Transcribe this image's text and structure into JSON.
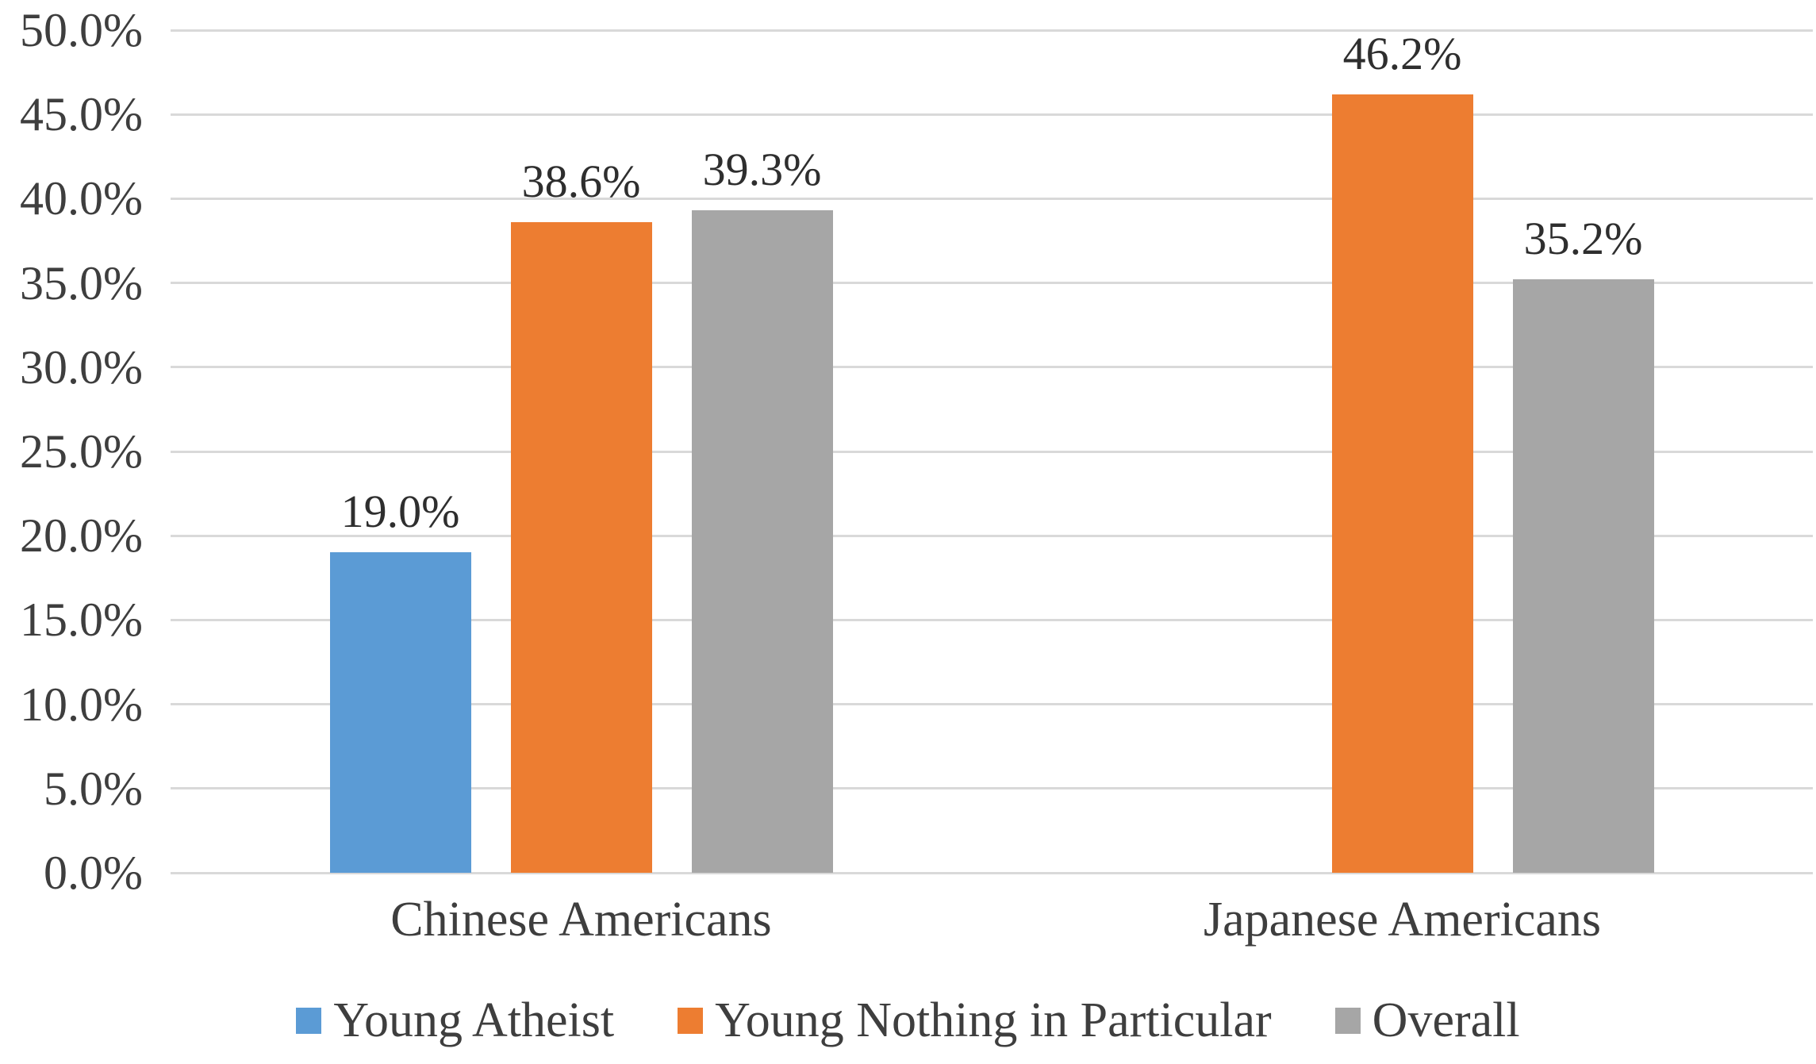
{
  "chart_data": {
    "type": "bar",
    "title": "",
    "categories": [
      "Chinese Americans",
      "Japanese Americans"
    ],
    "series": [
      {
        "name": "Young Atheist",
        "color": "#5B9BD5",
        "values": [
          19.0,
          null
        ],
        "labels": [
          "19.0%",
          null
        ]
      },
      {
        "name": "Young Nothing in Particular",
        "color": "#ED7D31",
        "values": [
          38.6,
          46.2
        ],
        "labels": [
          "38.6%",
          "46.2%"
        ]
      },
      {
        "name": "Overall",
        "color": "#A6A6A6",
        "values": [
          39.3,
          35.2
        ],
        "labels": [
          "39.3%",
          "35.2%"
        ]
      }
    ],
    "y_axis": {
      "min": 0,
      "max": 50,
      "step": 5,
      "tick_labels": [
        "0.0%",
        "5.0%",
        "10.0%",
        "15.0%",
        "20.0%",
        "25.0%",
        "30.0%",
        "35.0%",
        "40.0%",
        "45.0%",
        "50.0%"
      ]
    },
    "ylim": [
      0,
      50
    ],
    "grid": true,
    "legend_position": "bottom",
    "legend": [
      "Young Atheist",
      "Young Nothing in Particular",
      "Overall"
    ]
  },
  "style": {
    "background": "#FFFFFF",
    "gridline_color": "#D9D9D9",
    "axis_text_color": "#3E3E3E",
    "data_label_color": "#2E2E2E"
  }
}
